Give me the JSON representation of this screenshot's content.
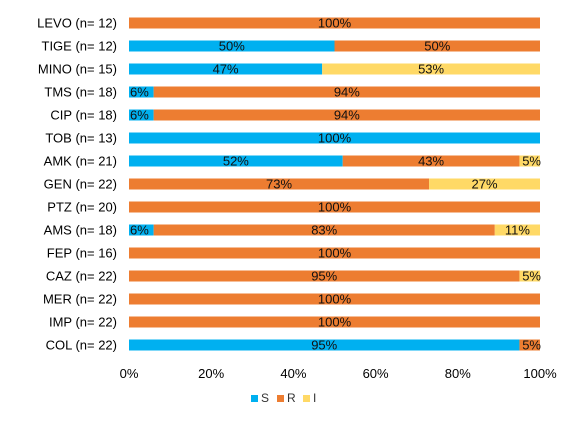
{
  "chart_data": {
    "type": "bar",
    "orientation": "horizontal",
    "stacked": true,
    "categories": [
      "LEVO (n= 12)",
      "TIGE (n= 12)",
      "MINO (n= 15)",
      "TMS (n= 18)",
      "CIP  (n= 18)",
      "TOB (n= 13)",
      "AMK (n= 21)",
      "GEN (n= 22)",
      "PTZ  (n= 20)",
      "AMS  (n= 18)",
      "FEP (n= 16)",
      "CAZ  (n= 22)",
      "MER (n= 22)",
      "IMP (n= 22)",
      "COL (n= 22)"
    ],
    "series": [
      {
        "name": "S",
        "color": "#00B0F0",
        "values": [
          0,
          50,
          47,
          6,
          6,
          100,
          52,
          0,
          0,
          6,
          0,
          0,
          0,
          0,
          95
        ]
      },
      {
        "name": "R",
        "color": "#ED7D31",
        "values": [
          100,
          50,
          0,
          94,
          94,
          0,
          43,
          73,
          100,
          83,
          100,
          95,
          100,
          100,
          5
        ]
      },
      {
        "name": "I",
        "color": "#FFD966",
        "values": [
          0,
          0,
          53,
          0,
          0,
          0,
          5,
          27,
          0,
          11,
          0,
          5,
          0,
          0,
          0
        ]
      }
    ],
    "x_ticks": [
      "0%",
      "20%",
      "40%",
      "60%",
      "80%",
      "100%"
    ],
    "xlim": [
      0,
      100
    ],
    "grid": false,
    "legend_position": "bottom",
    "legend": [
      "S",
      "R",
      "I"
    ]
  }
}
